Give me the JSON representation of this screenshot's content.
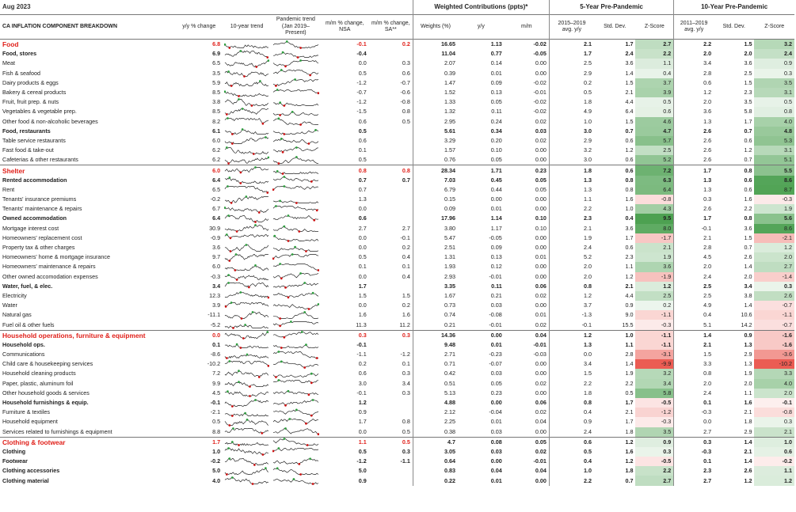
{
  "title": "Aug 2023",
  "group_headers": {
    "weighted": "Weighted Contributions (ppts)*",
    "five_year": "5-Year Pre-Pandemic",
    "ten_year": "10-Year Pre-Pandemic"
  },
  "col_headers": {
    "breakdown": "CA INFLATION COMPONENT BREAKDOWN",
    "yy": "y/y % change",
    "trend10": "10-year trend",
    "pandemic": "Pandemic trend (Jan 2019–Present)",
    "mm_nsa": "m/m % change, NSA",
    "mm_sa": "m/m % change, SA**",
    "weights": "Weights (%)",
    "wy": "y/y",
    "wm": "m/m",
    "avg5": "2015–2019 avg. y/y",
    "sd5": "Std. Dev.",
    "z5": "Z-Score",
    "avg10": "2011–2019 avg. y/y",
    "sd10": "Std. Dev.",
    "z10": "Z-Score"
  },
  "colors": {
    "red": "#e0201a",
    "line": "#222222",
    "min_marker": "#cc1111",
    "max_marker": "#2e9e3e",
    "z_pos": "#3f9a44",
    "z_neg": "#e9736c"
  },
  "rows": [
    {
      "t": "cat",
      "n": "Food",
      "yy": "6.8",
      "mn": "-0.1",
      "ms": "0.2",
      "w": "16.65",
      "wy": "1.13",
      "wm": "-0.02",
      "a5": "2.1",
      "s5": "1.7",
      "z5": "2.7",
      "a10": "2.2",
      "s10": "1.5",
      "z10": "3.2"
    },
    {
      "t": "sub",
      "n": "Food, stores",
      "yy": "6.9",
      "mn": "-0.4",
      "ms": "",
      "w": "11.04",
      "wy": "0.77",
      "wm": "-0.05",
      "a5": "1.7",
      "s5": "2.4",
      "z5": "2.2",
      "a10": "2.0",
      "s10": "2.0",
      "z10": "2.4"
    },
    {
      "t": "item",
      "n": "Meat",
      "yy": "6.5",
      "mn": "0.0",
      "ms": "0.3",
      "w": "2.07",
      "wy": "0.14",
      "wm": "0.00",
      "a5": "2.5",
      "s5": "3.6",
      "z5": "1.1",
      "a10": "3.4",
      "s10": "3.6",
      "z10": "0.9"
    },
    {
      "t": "item",
      "n": "Fish & seafood",
      "yy": "3.5",
      "mn": "0.5",
      "ms": "0.6",
      "w": "0.39",
      "wy": "0.01",
      "wm": "0.00",
      "a5": "2.9",
      "s5": "1.4",
      "z5": "0.4",
      "a10": "2.8",
      "s10": "2.5",
      "z10": "0.3"
    },
    {
      "t": "item",
      "n": "Dairy products & eggs",
      "yy": "5.9",
      "mn": "-1.2",
      "ms": "-0.7",
      "w": "1.47",
      "wy": "0.09",
      "wm": "-0.02",
      "a5": "0.2",
      "s5": "1.5",
      "z5": "3.7",
      "a10": "0.6",
      "s10": "1.5",
      "z10": "3.5"
    },
    {
      "t": "item",
      "n": "Bakery & cereal products",
      "yy": "8.5",
      "mn": "-0.7",
      "ms": "-0.6",
      "w": "1.52",
      "wy": "0.13",
      "wm": "-0.01",
      "a5": "0.5",
      "s5": "2.1",
      "z5": "3.9",
      "a10": "1.2",
      "s10": "2.3",
      "z10": "3.1"
    },
    {
      "t": "item",
      "n": "Fruit, fruit prep. & nuts",
      "yy": "3.8",
      "mn": "-1.2",
      "ms": "-0.8",
      "w": "1.33",
      "wy": "0.05",
      "wm": "-0.02",
      "a5": "1.8",
      "s5": "4.4",
      "z5": "0.5",
      "a10": "2.0",
      "s10": "3.5",
      "z10": "0.5"
    },
    {
      "t": "item",
      "n": "Vegetables & vegetable prep.",
      "yy": "8.5",
      "mn": "-1.5",
      "ms": "0.8",
      "w": "1.32",
      "wy": "0.11",
      "wm": "-0.02",
      "a5": "4.9",
      "s5": "6.4",
      "z5": "0.6",
      "a10": "3.6",
      "s10": "5.8",
      "z10": "0.8"
    },
    {
      "t": "item",
      "n": "Other food & non-alcoholic beverages",
      "yy": "8.2",
      "mn": "0.6",
      "ms": "0.5",
      "w": "2.95",
      "wy": "0.24",
      "wm": "0.02",
      "a5": "1.0",
      "s5": "1.5",
      "z5": "4.6",
      "a10": "1.3",
      "s10": "1.7",
      "z10": "4.0"
    },
    {
      "t": "sub",
      "n": "Food, restaurants",
      "yy": "6.1",
      "mn": "0.5",
      "ms": "",
      "w": "5.61",
      "wy": "0.34",
      "wm": "0.03",
      "a5": "3.0",
      "s5": "0.7",
      "z5": "4.7",
      "a10": "2.6",
      "s10": "0.7",
      "z10": "4.8"
    },
    {
      "t": "item",
      "n": "Table service restaurants",
      "yy": "6.0",
      "mn": "0.6",
      "ms": "",
      "w": "3.29",
      "wy": "0.20",
      "wm": "0.02",
      "a5": "2.9",
      "s5": "0.6",
      "z5": "5.7",
      "a10": "2.6",
      "s10": "0.6",
      "z10": "5.3"
    },
    {
      "t": "item",
      "n": "Fast food & take-out",
      "yy": "6.2",
      "mn": "0.1",
      "ms": "",
      "w": "1.57",
      "wy": "0.10",
      "wm": "0.00",
      "a5": "3.2",
      "s5": "1.2",
      "z5": "2.5",
      "a10": "2.6",
      "s10": "1.2",
      "z10": "3.1"
    },
    {
      "t": "item",
      "n": "Cafeterias & other restaurants",
      "yy": "6.2",
      "mn": "0.5",
      "ms": "",
      "w": "0.76",
      "wy": "0.05",
      "wm": "0.00",
      "a5": "3.0",
      "s5": "0.6",
      "z5": "5.2",
      "a10": "2.6",
      "s10": "0.7",
      "z10": "5.1"
    },
    {
      "t": "cat",
      "n": "Shelter",
      "yy": "6.0",
      "mn": "0.8",
      "ms": "0.8",
      "w": "28.34",
      "wy": "1.71",
      "wm": "0.23",
      "a5": "1.8",
      "s5": "0.6",
      "z5": "7.2",
      "a10": "1.7",
      "s10": "0.8",
      "z10": "5.5"
    },
    {
      "t": "sub",
      "n": "Rented accommodation",
      "yy": "6.4",
      "mn": "0.7",
      "ms": "0.7",
      "w": "7.03",
      "wy": "0.45",
      "wm": "0.05",
      "a5": "1.3",
      "s5": "0.8",
      "z5": "6.3",
      "a10": "1.3",
      "s10": "0.6",
      "z10": "8.6"
    },
    {
      "t": "item",
      "n": "Rent",
      "yy": "6.5",
      "mn": "0.7",
      "ms": "",
      "w": "6.79",
      "wy": "0.44",
      "wm": "0.05",
      "a5": "1.3",
      "s5": "0.8",
      "z5": "6.4",
      "a10": "1.3",
      "s10": "0.6",
      "z10": "8.7"
    },
    {
      "t": "item",
      "n": "Tenants' insurance premiums",
      "yy": "-0.2",
      "mn": "1.3",
      "ms": "",
      "w": "0.15",
      "wy": "0.00",
      "wm": "0.00",
      "a5": "1.1",
      "s5": "1.6",
      "z5": "-0.8",
      "a10": "0.3",
      "s10": "1.6",
      "z10": "-0.3"
    },
    {
      "t": "item",
      "n": "Tenants' maintenance & repairs",
      "yy": "6.7",
      "mn": "0.0",
      "ms": "",
      "w": "0.09",
      "wy": "0.01",
      "wm": "0.00",
      "a5": "2.2",
      "s5": "1.0",
      "z5": "4.3",
      "a10": "2.6",
      "s10": "2.2",
      "z10": "1.9"
    },
    {
      "t": "sub",
      "n": "Owned accommodation",
      "yy": "6.4",
      "mn": "0.6",
      "ms": "",
      "w": "17.96",
      "wy": "1.14",
      "wm": "0.10",
      "a5": "2.3",
      "s5": "0.4",
      "z5": "9.5",
      "a10": "1.7",
      "s10": "0.8",
      "z10": "5.6"
    },
    {
      "t": "item",
      "n": "Mortgage interest cost",
      "yy": "30.9",
      "mn": "2.7",
      "ms": "2.7",
      "w": "3.80",
      "wy": "1.17",
      "wm": "0.10",
      "a5": "2.1",
      "s5": "3.6",
      "z5": "8.0",
      "a10": "-0.1",
      "s10": "3.6",
      "z10": "8.6"
    },
    {
      "t": "item",
      "n": "Homeowners' replacement cost",
      "yy": "-0.9",
      "mn": "0.0",
      "ms": "-0.1",
      "w": "5.47",
      "wy": "-0.05",
      "wm": "0.00",
      "a5": "1.9",
      "s5": "1.7",
      "z5": "-1.7",
      "a10": "2.1",
      "s10": "1.5",
      "z10": "-2.1"
    },
    {
      "t": "item",
      "n": "Property tax & other charges",
      "yy": "3.6",
      "mn": "0.0",
      "ms": "0.2",
      "w": "2.51",
      "wy": "0.09",
      "wm": "0.00",
      "a5": "2.4",
      "s5": "0.6",
      "z5": "2.1",
      "a10": "2.8",
      "s10": "0.7",
      "z10": "1.2"
    },
    {
      "t": "item",
      "n": "Homeowners' home & mortgage insurance",
      "yy": "9.7",
      "mn": "0.5",
      "ms": "0.4",
      "w": "1.31",
      "wy": "0.13",
      "wm": "0.01",
      "a5": "5.2",
      "s5": "2.3",
      "z5": "1.9",
      "a10": "4.5",
      "s10": "2.6",
      "z10": "2.0"
    },
    {
      "t": "item",
      "n": "Homeowners' maintenance & repairs",
      "yy": "6.0",
      "mn": "0.1",
      "ms": "0.1",
      "w": "1.93",
      "wy": "0.12",
      "wm": "0.00",
      "a5": "2.0",
      "s5": "1.1",
      "z5": "3.6",
      "a10": "2.0",
      "s10": "1.4",
      "z10": "2.7"
    },
    {
      "t": "item",
      "n": "Other owned accomodation expenses",
      "yy": "-0.3",
      "mn": "0.0",
      "ms": "0.4",
      "w": "2.93",
      "wy": "-0.01",
      "wm": "0.00",
      "a5": "2.0",
      "s5": "1.2",
      "z5": "-1.9",
      "a10": "2.4",
      "s10": "2.0",
      "z10": "-1.4"
    },
    {
      "t": "sub",
      "n": "Water, fuel, & elec.",
      "yy": "3.4",
      "mn": "1.7",
      "ms": "",
      "w": "3.35",
      "wy": "0.11",
      "wm": "0.06",
      "a5": "0.8",
      "s5": "2.1",
      "z5": "1.2",
      "a10": "2.5",
      "s10": "3.4",
      "z10": "0.3"
    },
    {
      "t": "item",
      "n": "Electricity",
      "yy": "12.3",
      "mn": "1.5",
      "ms": "1.5",
      "w": "1.67",
      "wy": "0.21",
      "wm": "0.02",
      "a5": "1.2",
      "s5": "4.4",
      "z5": "2.5",
      "a10": "2.5",
      "s10": "3.8",
      "z10": "2.6"
    },
    {
      "t": "item",
      "n": "Water",
      "yy": "3.9",
      "mn": "0.0",
      "ms": "0.2",
      "w": "0.73",
      "wy": "0.03",
      "wm": "0.00",
      "a5": "3.7",
      "s5": "0.9",
      "z5": "0.2",
      "a10": "4.9",
      "s10": "1.4",
      "z10": "-0.7"
    },
    {
      "t": "item",
      "n": "Natural gas",
      "yy": "-11.1",
      "mn": "1.6",
      "ms": "1.6",
      "w": "0.74",
      "wy": "-0.08",
      "wm": "0.01",
      "a5": "-1.3",
      "s5": "9.0",
      "z5": "-1.1",
      "a10": "0.4",
      "s10": "10.6",
      "z10": "-1.1"
    },
    {
      "t": "item",
      "n": "Fuel oil & other fuels",
      "yy": "-5.2",
      "mn": "11.3",
      "ms": "11.2",
      "w": "0.21",
      "wy": "-0.01",
      "wm": "0.02",
      "a5": "-0.1",
      "s5": "15.5",
      "z5": "-0.3",
      "a10": "5.1",
      "s10": "14.2",
      "z10": "-0.7"
    },
    {
      "t": "cat",
      "n": "Household operations, furniture & equipment",
      "yy": "0.0",
      "mn": "0.3",
      "ms": "0.3",
      "w": "14.36",
      "wy": "0.00",
      "wm": "0.04",
      "a5": "1.2",
      "s5": "1.0",
      "z5": "-1.1",
      "a10": "1.4",
      "s10": "0.9",
      "z10": "-1.6"
    },
    {
      "t": "sub",
      "n": "Household ops.",
      "yy": "0.1",
      "mn": "-0.1",
      "ms": "",
      "w": "9.48",
      "wy": "0.01",
      "wm": "-0.01",
      "a5": "1.3",
      "s5": "1.1",
      "z5": "-1.1",
      "a10": "2.1",
      "s10": "1.3",
      "z10": "-1.6"
    },
    {
      "t": "item",
      "n": "Communications",
      "yy": "-8.6",
      "mn": "-1.1",
      "ms": "-1.2",
      "w": "2.71",
      "wy": "-0.23",
      "wm": "-0.03",
      "a5": "0.0",
      "s5": "2.8",
      "z5": "-3.1",
      "a10": "1.5",
      "s10": "2.9",
      "z10": "-3.6"
    },
    {
      "t": "item",
      "n": "Child care & housekeeping services",
      "yy": "-10.2",
      "mn": "0.2",
      "ms": "0.1",
      "w": "0.71",
      "wy": "-0.07",
      "wm": "0.00",
      "a5": "3.4",
      "s5": "1.4",
      "z5": "-9.9",
      "a10": "3.3",
      "s10": "1.3",
      "z10": "-10.2"
    },
    {
      "t": "item",
      "n": "Household cleaning products",
      "yy": "7.2",
      "mn": "0.6",
      "ms": "0.3",
      "w": "0.42",
      "wy": "0.03",
      "wm": "0.00",
      "a5": "1.5",
      "s5": "1.9",
      "z5": "3.2",
      "a10": "0.8",
      "s10": "1.9",
      "z10": "3.3"
    },
    {
      "t": "item",
      "n": "Paper, plastic, aluminum foil",
      "yy": "9.9",
      "mn": "3.0",
      "ms": "3.4",
      "w": "0.51",
      "wy": "0.05",
      "wm": "0.02",
      "a5": "2.2",
      "s5": "2.2",
      "z5": "3.4",
      "a10": "2.0",
      "s10": "2.0",
      "z10": "4.0"
    },
    {
      "t": "item",
      "n": "Other household goods & services",
      "yy": "4.5",
      "mn": "-0.1",
      "ms": "0.3",
      "w": "5.13",
      "wy": "0.23",
      "wm": "0.00",
      "a5": "1.8",
      "s5": "0.5",
      "z5": "5.8",
      "a10": "2.4",
      "s10": "1.1",
      "z10": "2.0"
    },
    {
      "t": "sub",
      "n": "Household furnishings & equip.",
      "yy": "-0.1",
      "mn": "1.2",
      "ms": "",
      "w": "4.88",
      "wy": "0.00",
      "wm": "0.06",
      "a5": "0.8",
      "s5": "1.7",
      "z5": "-0.5",
      "a10": "0.1",
      "s10": "1.6",
      "z10": "-0.1"
    },
    {
      "t": "item",
      "n": "Furniture & textiles",
      "yy": "-2.1",
      "mn": "0.9",
      "ms": "",
      "w": "2.12",
      "wy": "-0.04",
      "wm": "0.02",
      "a5": "0.4",
      "s5": "2.1",
      "z5": "-1.2",
      "a10": "-0.3",
      "s10": "2.1",
      "z10": "-0.8"
    },
    {
      "t": "item",
      "n": "Household equipment",
      "yy": "0.5",
      "mn": "1.7",
      "ms": "0.8",
      "w": "2.25",
      "wy": "0.01",
      "wm": "0.04",
      "a5": "0.9",
      "s5": "1.7",
      "z5": "-0.3",
      "a10": "0.0",
      "s10": "1.8",
      "z10": "0.3"
    },
    {
      "t": "item",
      "n": "Services related to furnishings & equipment",
      "yy": "8.8",
      "mn": "0.0",
      "ms": "0.5",
      "w": "0.38",
      "wy": "0.03",
      "wm": "0.00",
      "a5": "2.4",
      "s5": "1.8",
      "z5": "3.5",
      "a10": "2.7",
      "s10": "2.9",
      "z10": "2.1"
    },
    {
      "t": "cat",
      "n": "Clothing & footwear",
      "yy": "1.7",
      "mn": "1.1",
      "ms": "0.5",
      "w": "4.7",
      "wy": "0.08",
      "wm": "0.05",
      "a5": "0.6",
      "s5": "1.2",
      "z5": "0.9",
      "a10": "0.3",
      "s10": "1.4",
      "z10": "1.0"
    },
    {
      "t": "sub",
      "n": "Clothing",
      "yy": "1.0",
      "mn": "0.5",
      "ms": "0.3",
      "w": "3.05",
      "wy": "0.03",
      "wm": "0.02",
      "a5": "0.5",
      "s5": "1.6",
      "z5": "0.3",
      "a10": "-0.3",
      "s10": "2.1",
      "z10": "0.6"
    },
    {
      "t": "sub",
      "n": "Footwear",
      "yy": "-0.2",
      "mn": "-1.2",
      "ms": "-1.1",
      "w": "0.64",
      "wy": "0.00",
      "wm": "-0.01",
      "a5": "0.4",
      "s5": "1.2",
      "z5": "-0.5",
      "a10": "0.1",
      "s10": "1.4",
      "z10": "-0.2"
    },
    {
      "t": "sub",
      "n": "Clothing accessories",
      "yy": "5.0",
      "mn": "5.0",
      "ms": "",
      "w": "0.83",
      "wy": "0.04",
      "wm": "0.04",
      "a5": "1.0",
      "s5": "1.8",
      "z5": "2.2",
      "a10": "2.3",
      "s10": "2.6",
      "z10": "1.1"
    },
    {
      "t": "sub",
      "n": "Clothing material",
      "yy": "4.0",
      "mn": "0.9",
      "ms": "",
      "w": "0.22",
      "wy": "0.01",
      "wm": "0.00",
      "a5": "2.2",
      "s5": "0.7",
      "z5": "2.7",
      "a10": "2.7",
      "s10": "1.2",
      "z10": "1.2"
    }
  ]
}
